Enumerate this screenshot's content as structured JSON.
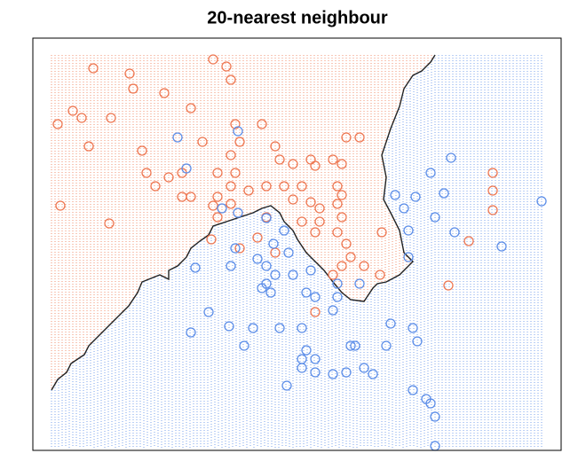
{
  "chart_data": {
    "type": "scatter",
    "title": "20-nearest neighbour",
    "xlim": [
      -21,
      574
    ],
    "ylim": [
      -18,
      447
    ],
    "series": [
      {
        "color": "#ee7650",
        "x": [
          47,
          88,
          92,
          127,
          182,
          197,
          202,
          24,
          34,
          67,
          7,
          42,
          102,
          157,
          170,
          207,
          237,
          212,
          202,
          252,
          257,
          272,
          292,
          297,
          317,
          327,
          332,
          347,
          107,
          132,
          147,
          187,
          207,
          202,
          222,
          242,
          262,
          282,
          322,
          327,
          147,
          157,
          182,
          187,
          202,
          272,
          292,
          302,
          322,
          327,
          302,
          282,
          297,
          322,
          332,
          337,
          327,
          352,
          372,
          317,
          117,
          10,
          65,
          180,
          212,
          252,
          370,
          497,
          497,
          497,
          470,
          447,
          297,
          187,
          242,
          232
        ],
        "values": [
          413,
          407,
          390,
          385,
          423,
          415,
          400,
          365,
          357,
          357,
          350,
          325,
          320,
          368,
          330,
          350,
          350,
          330,
          315,
          325,
          310,
          305,
          310,
          303,
          310,
          305,
          335,
          335,
          295,
          290,
          295,
          295,
          295,
          280,
          275,
          280,
          280,
          280,
          280,
          270,
          268,
          268,
          258,
          268,
          260,
          265,
          262,
          255,
          260,
          245,
          240,
          240,
          228,
          228,
          215,
          200,
          190,
          190,
          228,
          180,
          280,
          258,
          238,
          220,
          210,
          205,
          180,
          295,
          275,
          253,
          218,
          168,
          138,
          245,
          245,
          222
        ]
      },
      {
        "color": "#5b8de8",
        "x": [
          142,
          152,
          210,
          192,
          210,
          242,
          262,
          250,
          267,
          207,
          232,
          242,
          202,
          252,
          272,
          242,
          237,
          247,
          292,
          322,
          287,
          297,
          322,
          317,
          162,
          177,
          200,
          227,
          257,
          282,
          157,
          217,
          287,
          337,
          342,
          382,
          407,
          377,
          412,
          282,
          297,
          282,
          297,
          317,
          332,
          352,
          362,
          407,
          422,
          427,
          432,
          432,
          265,
          450,
          427,
          387,
          410,
          442,
          397,
          432,
          402,
          454,
          507,
          552,
          402,
          347
        ],
        "values": [
          335,
          300,
          342,
          255,
          250,
          244,
          230,
          215,
          205,
          210,
          198,
          190,
          190,
          180,
          180,
          170,
          165,
          160,
          185,
          170,
          160,
          155,
          155,
          140,
          188,
          138,
          122,
          120,
          120,
          120,
          115,
          100,
          95,
          100,
          100,
          125,
          120,
          100,
          105,
          85,
          85,
          75,
          70,
          68,
          70,
          75,
          68,
          50,
          40,
          35,
          20,
          -13,
          55,
          312,
          295,
          270,
          268,
          272,
          255,
          245,
          230,
          228,
          212,
          263,
          200,
          170
        ]
      }
    ],
    "boundary": {
      "color": "#222222",
      "x": [
        0,
        7,
        17,
        22,
        37,
        42,
        52,
        62,
        77,
        87,
        97,
        102,
        122,
        132,
        132,
        142,
        152,
        157,
        167,
        177,
        182,
        197,
        212,
        227,
        237,
        247,
        257,
        262,
        272,
        277,
        287,
        297,
        307,
        317,
        327,
        337,
        352,
        362,
        367,
        377,
        392,
        402,
        407,
        397,
        392,
        382,
        374,
        377,
        372,
        382,
        392,
        397,
        407,
        417,
        422,
        427,
        432
      ],
      "values": [
        50,
        62,
        70,
        80,
        90,
        100,
        110,
        120,
        135,
        145,
        160,
        172,
        180,
        175,
        185,
        190,
        200,
        210,
        218,
        225,
        235,
        240,
        245,
        250,
        255,
        258,
        250,
        240,
        230,
        220,
        205,
        195,
        185,
        172,
        160,
        152,
        150,
        165,
        170,
        172,
        180,
        190,
        195,
        205,
        230,
        250,
        265,
        290,
        315,
        345,
        370,
        390,
        405,
        410,
        415,
        420,
        428
      ]
    }
  }
}
